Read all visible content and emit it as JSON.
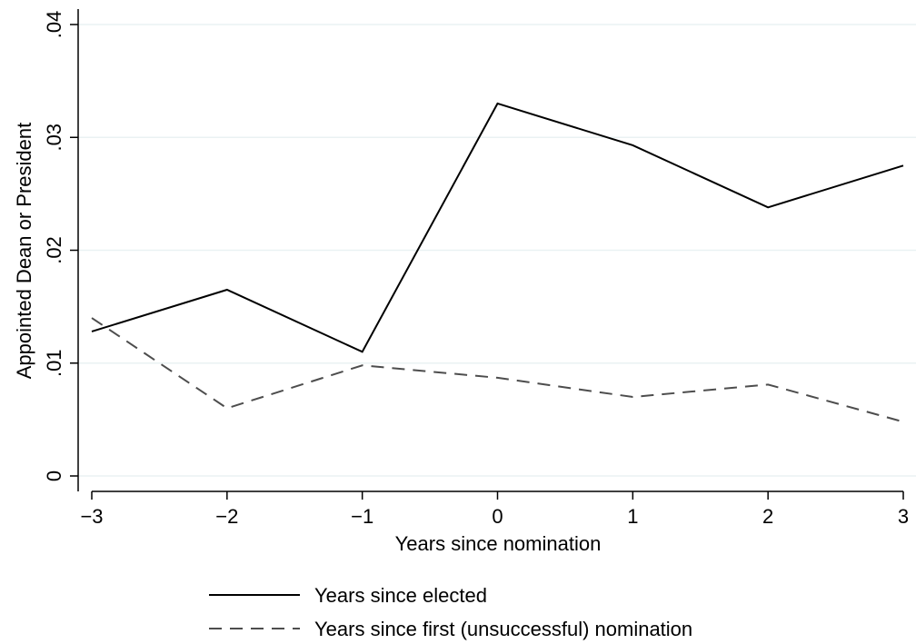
{
  "chart_data": {
    "type": "line",
    "title": "",
    "xlabel": "Years since nomination",
    "ylabel": "Appointed Dean or President",
    "x": [
      -3,
      -2,
      -1,
      0,
      1,
      2,
      3
    ],
    "xticks": [
      -3,
      -2,
      -1,
      0,
      1,
      2,
      3
    ],
    "xtick_labels": [
      "−3",
      "−2",
      "−1",
      "0",
      "1",
      "2",
      "3"
    ],
    "xlim": [
      -3,
      3
    ],
    "yticks": [
      0,
      0.01,
      0.02,
      0.03,
      0.04
    ],
    "ytick_labels": [
      "0",
      ".01",
      ".02",
      ".03",
      ".04"
    ],
    "ylim": [
      0,
      0.04
    ],
    "grid": true,
    "legend_position": "bottom",
    "series": [
      {
        "name": "Years since elected",
        "values": [
          0.0128,
          0.0165,
          0.011,
          0.033,
          0.0293,
          0.0238,
          0.0275
        ],
        "color": "#000000",
        "style": "solid"
      },
      {
        "name": "Years since first (unsuccessful) nomination",
        "values": [
          0.014,
          0.006,
          0.0098,
          0.0087,
          0.007,
          0.0081,
          0.0048
        ],
        "color": "#4d4d4d",
        "style": "dashed"
      }
    ]
  }
}
